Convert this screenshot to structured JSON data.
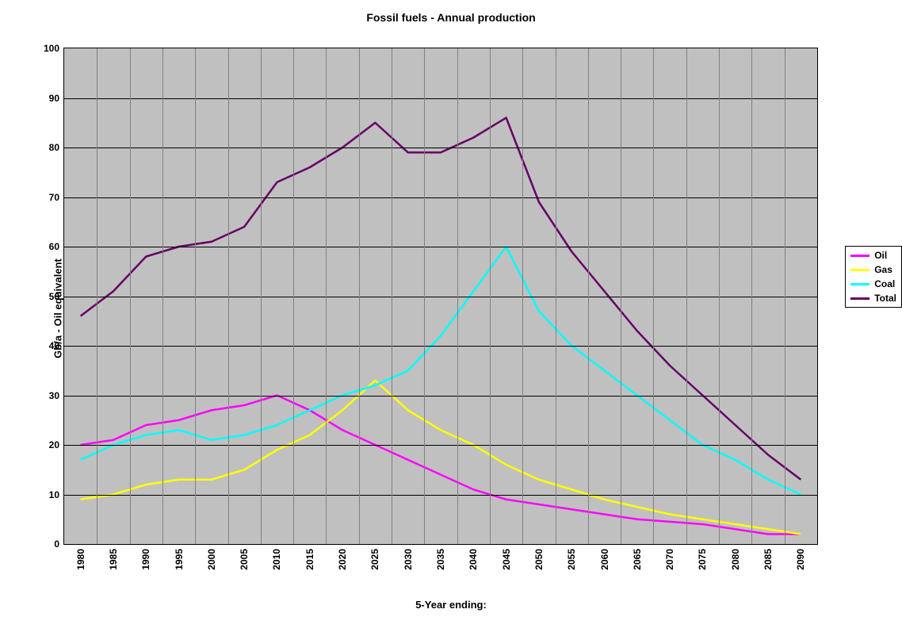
{
  "chart": {
    "type": "line",
    "title": "Fossil fuels - Annual production",
    "title_fontsize": 14,
    "xlabel": "5-Year ending:",
    "ylabel": "Gb/a - Oil equivalent",
    "label_fontsize": 13,
    "tick_fontsize": 12,
    "background_color": "#ffffff",
    "plot_background_color": "#c0c0c0",
    "grid_h_color": "#000000",
    "grid_v_color": "#808080",
    "axis_color": "#000000",
    "x_categories": [
      "1980",
      "1985",
      "1990",
      "1995",
      "2000",
      "2005",
      "2010",
      "2015",
      "2020",
      "2025",
      "2030",
      "2035",
      "2040",
      "2045",
      "2050",
      "2055",
      "2060",
      "2065",
      "2070",
      "2075",
      "2080",
      "2085",
      "2090"
    ],
    "ylim": [
      0,
      100
    ],
    "ytick_step": 10,
    "line_width": 2.5,
    "series": [
      {
        "name": "Oil",
        "color": "#ff00ff",
        "values": [
          20,
          21,
          24,
          25,
          27,
          28,
          30,
          27,
          23,
          20,
          17,
          14,
          11,
          9,
          8,
          7,
          6,
          5,
          4.5,
          4,
          3,
          2,
          2
        ]
      },
      {
        "name": "Gas",
        "color": "#ffff00",
        "values": [
          9,
          10,
          12,
          13,
          13,
          15,
          19,
          22,
          27,
          33,
          27,
          23,
          20,
          16,
          13,
          11,
          9,
          7.5,
          6,
          5,
          4,
          3,
          2
        ]
      },
      {
        "name": "Coal",
        "color": "#00ffff",
        "values": [
          17,
          20,
          22,
          23,
          21,
          22,
          24,
          27,
          30,
          32,
          35,
          42,
          51,
          60,
          47,
          40,
          35,
          30,
          25,
          20,
          17,
          13,
          10
        ]
      },
      {
        "name": "Total",
        "color": "#660066",
        "values": [
          46,
          51,
          58,
          60,
          61,
          64,
          73,
          76,
          80,
          85,
          79,
          79,
          82,
          86,
          69,
          59,
          51,
          43,
          36,
          30,
          24,
          18,
          13
        ]
      }
    ],
    "legend": {
      "position": "right",
      "background": "#ffffff",
      "border_color": "#000000",
      "fontsize": 12
    }
  }
}
